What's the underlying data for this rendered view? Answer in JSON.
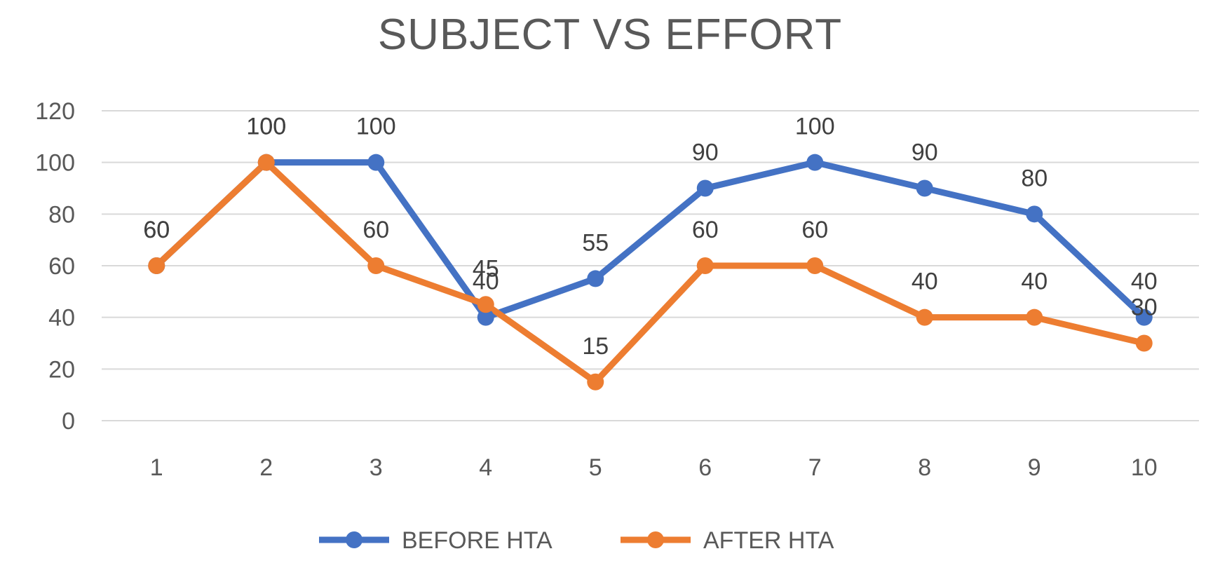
{
  "chart_data": {
    "type": "line",
    "title": "SUBJECT VS EFFORT",
    "xlabel": "",
    "ylabel": "",
    "x": [
      1,
      2,
      3,
      4,
      5,
      6,
      7,
      8,
      9,
      10
    ],
    "ylim": [
      0,
      120
    ],
    "yticks": [
      0,
      20,
      40,
      60,
      80,
      100,
      120
    ],
    "grid": true,
    "legend_position": "bottom",
    "series": [
      {
        "name": "BEFORE HTA",
        "color": "#4472C4",
        "values": [
          60,
          100,
          100,
          40,
          55,
          90,
          100,
          90,
          80,
          40
        ]
      },
      {
        "name": "AFTER HTA",
        "color": "#ED7D31",
        "values": [
          60,
          100,
          60,
          45,
          15,
          60,
          60,
          40,
          40,
          30
        ]
      }
    ]
  }
}
